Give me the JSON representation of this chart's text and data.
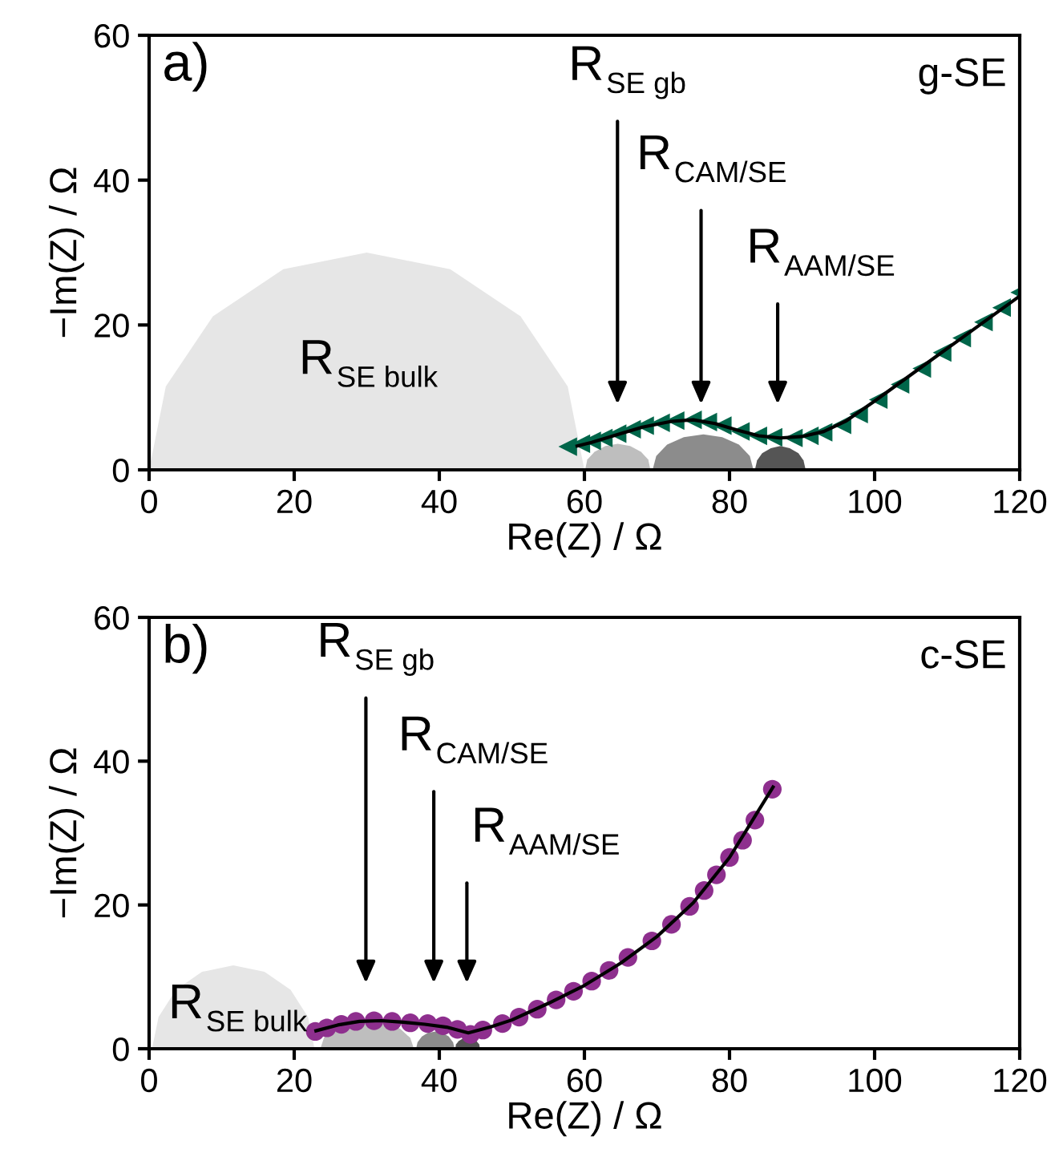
{
  "chart_data": [
    {
      "type": "scatter",
      "xlabel": "Re(Z) / Ω",
      "ylabel": "−Im(Z) / Ω",
      "xlim": [
        0,
        120
      ],
      "ylim": [
        0,
        60
      ],
      "xticks": [
        0,
        20,
        40,
        60,
        80,
        100,
        120
      ],
      "yticks": [
        0,
        20,
        40,
        60
      ],
      "grid": false,
      "legend": false,
      "annotations": [
        "a)",
        "g-SE",
        "R$_{SE bulk}$",
        "R$_{SE gb}$",
        "R$_{CAM/SE}$",
        "R$_{AAM/SE}$"
      ],
      "series": [
        {
          "type": "area",
          "color": "#e6e6e6",
          "x": [
            0,
            2.3,
            8.8,
            18.5,
            30,
            41.5,
            51.2,
            57.7,
            60
          ],
          "values": [
            0,
            11.5,
            21.2,
            27.7,
            30,
            27.7,
            21.2,
            11.5,
            0
          ]
        },
        {
          "type": "area",
          "color": "#bebebe",
          "x": [
            60.1,
            60.4,
            61.4,
            62.9,
            64.6,
            66.3,
            67.8,
            68.8,
            69.1
          ],
          "values": [
            0,
            1.4,
            2.5,
            3.3,
            3.6,
            3.3,
            2.5,
            1.4,
            0
          ]
        },
        {
          "type": "area",
          "color": "#8c8c8c",
          "x": [
            69.4,
            69.9,
            71.4,
            73.7,
            76.4,
            79.0,
            81.3,
            82.8,
            83.3
          ],
          "values": [
            0,
            1.9,
            3.5,
            4.5,
            4.9,
            4.5,
            3.5,
            1.9,
            0
          ]
        },
        {
          "type": "area",
          "color": "#555555",
          "x": [
            83.5,
            83.8,
            84.5,
            85.7,
            87,
            88.3,
            89.5,
            90.2,
            90.5
          ],
          "values": [
            0,
            1.3,
            2.3,
            3.0,
            3.3,
            3.0,
            2.3,
            1.3,
            0
          ]
        },
        {
          "color": "#00664a",
          "marker": "triangle",
          "x": [
            57.7,
            59.5,
            61,
            62.6,
            64.5,
            66.5,
            68.3,
            70.5,
            72.5,
            74.9,
            77,
            79.0,
            81.5,
            83.9,
            86,
            88.8,
            91,
            92.9,
            95.5,
            97.8,
            100.5,
            103.5,
            106.5,
            109.3,
            112,
            115,
            117.5,
            120
          ],
          "values": [
            3.2,
            3.6,
            4.0,
            4.4,
            5.0,
            5.6,
            6.1,
            6.5,
            6.8,
            6.9,
            6.6,
            6.1,
            5.3,
            4.7,
            4.5,
            4.4,
            4.7,
            5.2,
            6.2,
            7.7,
            9.7,
            11.8,
            14.0,
            16.2,
            18.2,
            20.4,
            22.4,
            24.5
          ]
        },
        {
          "type": "line",
          "color": "#000000",
          "x": [
            59,
            61,
            64,
            68,
            72,
            75,
            78,
            81,
            84,
            87,
            90,
            93,
            96,
            100,
            104,
            108,
            112,
            116,
            120
          ],
          "values": [
            3.3,
            3.8,
            4.7,
            5.9,
            6.7,
            6.9,
            6.4,
            5.5,
            4.7,
            4.4,
            4.6,
            5.3,
            6.7,
            9.5,
            12.4,
            15.3,
            18.2,
            21.1,
            24.0
          ]
        }
      ]
    },
    {
      "type": "scatter",
      "xlabel": "Re(Z) / Ω",
      "ylabel": "−Im(Z) / Ω",
      "xlim": [
        0,
        120
      ],
      "ylim": [
        0,
        60
      ],
      "xticks": [
        0,
        20,
        40,
        60,
        80,
        100,
        120
      ],
      "yticks": [
        0,
        20,
        40,
        60
      ],
      "grid": false,
      "legend": false,
      "annotations": [
        "b)",
        "c-SE",
        "R$_{SE bulk}$",
        "R$_{SE gb}$",
        "R$_{CAM/SE}$",
        "R$_{AAM/SE}$"
      ],
      "series": [
        {
          "type": "area",
          "color": "#e6e6e6",
          "x": [
            0.4,
            1.3,
            3.7,
            7.3,
            11.6,
            15.9,
            19.5,
            21.9,
            22.8
          ],
          "values": [
            0,
            4.4,
            8.2,
            10.7,
            11.6,
            10.7,
            8.2,
            4.4,
            0
          ]
        },
        {
          "type": "area",
          "color": "#bebebe",
          "x": [
            23.6,
            24.1,
            25.5,
            27.6,
            30.1,
            32.5,
            34.6,
            36.0,
            36.5
          ],
          "values": [
            0,
            1.5,
            2.8,
            3.6,
            3.9,
            3.6,
            2.8,
            1.5,
            0
          ]
        },
        {
          "type": "area",
          "color": "#8c8c8c",
          "x": [
            36.8,
            37.0,
            37.6,
            38.4,
            39.5,
            40.5,
            41.3,
            41.9,
            42.1
          ],
          "values": [
            0,
            0.9,
            1.7,
            2.2,
            2.4,
            2.2,
            1.7,
            0.9,
            0
          ]
        },
        {
          "type": "area",
          "color": "#555555",
          "x": [
            42.2,
            42.3,
            42.7,
            43.2,
            43.9,
            44.6,
            45.1,
            45.5,
            45.6
          ],
          "values": [
            0,
            0.6,
            1.1,
            1.4,
            1.5,
            1.4,
            1.1,
            0.6,
            0
          ]
        },
        {
          "color": "#8e2f8e",
          "marker": "circle",
          "x": [
            22.9,
            24.5,
            26.5,
            28.5,
            31,
            33.5,
            36,
            38.4,
            40.5,
            42.5,
            44.3,
            46,
            48.7,
            51,
            53.5,
            56.1,
            58.5,
            61,
            63.4,
            66,
            69.3,
            72,
            74.5,
            76.5,
            78.2,
            80,
            81.8,
            83.5,
            85.9
          ],
          "values": [
            2.4,
            2.9,
            3.4,
            3.8,
            3.9,
            3.8,
            3.6,
            3.5,
            3.2,
            2.7,
            2.0,
            2.6,
            3.5,
            4.4,
            5.5,
            6.8,
            8.0,
            9.4,
            10.9,
            12.7,
            15.0,
            17.3,
            19.8,
            22.0,
            24.2,
            26.6,
            29.0,
            31.8,
            36.1
          ]
        },
        {
          "type": "line",
          "color": "#000000",
          "x": [
            23,
            26,
            29,
            32,
            35,
            38,
            41,
            44,
            47,
            50,
            55,
            60,
            65,
            70,
            75,
            80,
            83,
            86
          ],
          "values": [
            2.5,
            3.3,
            3.8,
            3.9,
            3.7,
            3.4,
            3.0,
            2.2,
            3.0,
            4.0,
            6.3,
            8.8,
            11.9,
            15.6,
            20.3,
            26.6,
            31.5,
            36.4
          ]
        }
      ]
    }
  ]
}
